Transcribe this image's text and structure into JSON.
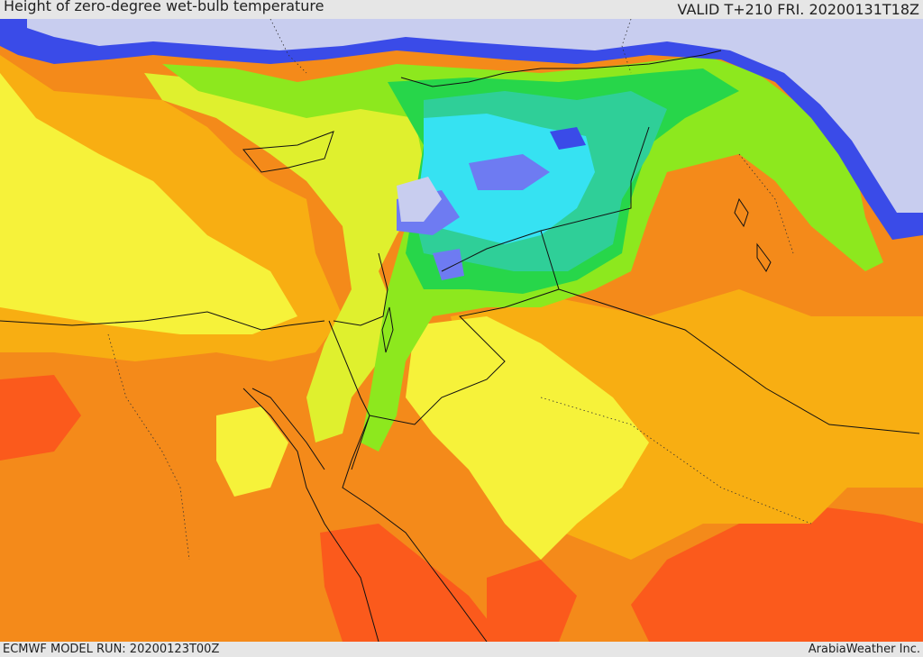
{
  "header": {
    "title": "Height of zero-degree wet-bulb temperature",
    "valid": "VALID T+210 FRI. 20200131T18Z"
  },
  "footer": {
    "model_run": "ECMWF MODEL RUN: 20200123T00Z",
    "credit": "ArabiaWeather Inc."
  },
  "palette": {
    "lowest": "#c8cdef",
    "low_blue": "#6e7bf2",
    "blue": "#3a4be8",
    "cyan": "#36e2f2",
    "teal": "#2fcf98",
    "green": "#27d64a",
    "light_green": "#8de81e",
    "yellow_green": "#dff02e",
    "yellow": "#f6f23a",
    "orange": "#f8ae12",
    "dark_orange": "#f48a1a",
    "red_orange": "#fb5a1c",
    "red": "#fa3a1e"
  }
}
